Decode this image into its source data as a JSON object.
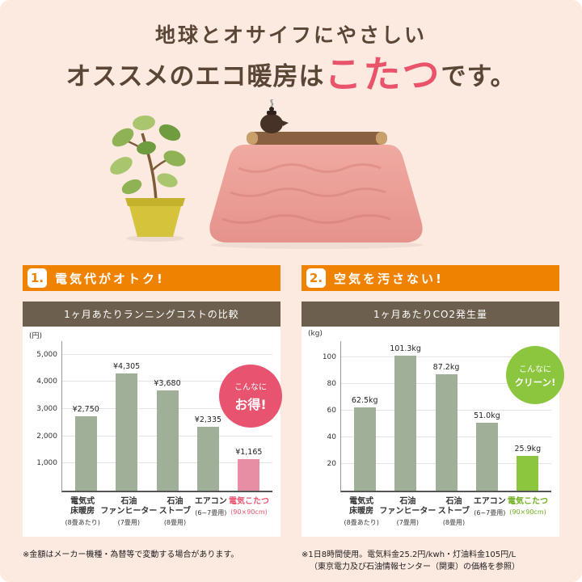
{
  "header": {
    "line1": "地球とオサイフにやさしい",
    "line2_prefix": "オススメのエコ暖房は",
    "line2_highlight": "こたつ",
    "line2_suffix": "です。"
  },
  "sections": [
    {
      "number": "1.",
      "title": "電気代がオトク!",
      "badge_line1": "こんなに",
      "badge_line2": "お得!"
    },
    {
      "number": "2.",
      "title": "空気を汚さない!",
      "badge_line1": "こんなに",
      "badge_line2": "クリーン!"
    }
  ],
  "chart_data": [
    {
      "type": "bar",
      "title": "1ヶ月あたりランニングコストの比較",
      "unit": "(円)",
      "categories": [
        [
          "電気式",
          "床暖房"
        ],
        [
          "石油",
          "ファンヒーター"
        ],
        [
          "石油",
          "ストーブ"
        ],
        [
          "エアコン"
        ],
        [
          "電気こたつ"
        ]
      ],
      "category_notes": [
        "(8畳あたり)",
        "(7畳用)",
        "(8畳用)",
        "(6~7畳用)",
        "(90×90cm)"
      ],
      "values": [
        2750,
        4305,
        3680,
        2335,
        1165
      ],
      "value_labels": [
        "¥2,750",
        "¥4,305",
        "¥3,680",
        "¥2,335",
        "¥1,165"
      ],
      "ylim": [
        0,
        5000
      ],
      "scale_max": 5500,
      "yticks": [
        {
          "value": 1000,
          "label": "1,000"
        },
        {
          "value": 2000,
          "label": "2,000"
        },
        {
          "value": 3000,
          "label": "3,000"
        },
        {
          "value": 4000,
          "label": "4,000"
        },
        {
          "value": 5000,
          "label": "5,000"
        }
      ],
      "bar_color": "#a0af98",
      "highlight_index": 4,
      "highlight_bar_color": "#e78da4",
      "highlight_text_color": "#e8536f",
      "legend": "none",
      "grid": "horizontal"
    },
    {
      "type": "bar",
      "title": "1ヶ月あたりCO2発生量",
      "unit": "(kg)",
      "categories": [
        [
          "電気式",
          "床暖房"
        ],
        [
          "石油",
          "ファンヒーター"
        ],
        [
          "石油",
          "ストーブ"
        ],
        [
          "エアコン"
        ],
        [
          "電気こたつ"
        ]
      ],
      "category_notes": [
        "(8畳あたり)",
        "(7畳用)",
        "(8畳用)",
        "(6~7畳用)",
        "(90×90cm)"
      ],
      "values": [
        62.5,
        101.3,
        87.2,
        51.0,
        25.9
      ],
      "value_labels": [
        "62.5kg",
        "101.3kg",
        "87.2kg",
        "51.0kg",
        "25.9kg"
      ],
      "ylim": [
        0,
        100
      ],
      "scale_max": 112,
      "yticks": [
        {
          "value": 20,
          "label": "20"
        },
        {
          "value": 40,
          "label": "40"
        },
        {
          "value": 60,
          "label": "60"
        },
        {
          "value": 80,
          "label": "80"
        },
        {
          "value": 100,
          "label": "100"
        }
      ],
      "bar_color": "#a0af98",
      "highlight_index": 4,
      "highlight_bar_color": "#8cc63f",
      "highlight_text_color": "#6fae1f",
      "legend": "none",
      "grid": "horizontal"
    }
  ],
  "footnotes": {
    "left": "※金額はメーカー機種・為替等で変動する場合があります。",
    "right_line1": "※1日8時間使用。電気料金25.2円/kwh・灯油料金105円/L",
    "right_line2": "（東京電力及び石油情報センター（関東）の価格を参照）"
  }
}
